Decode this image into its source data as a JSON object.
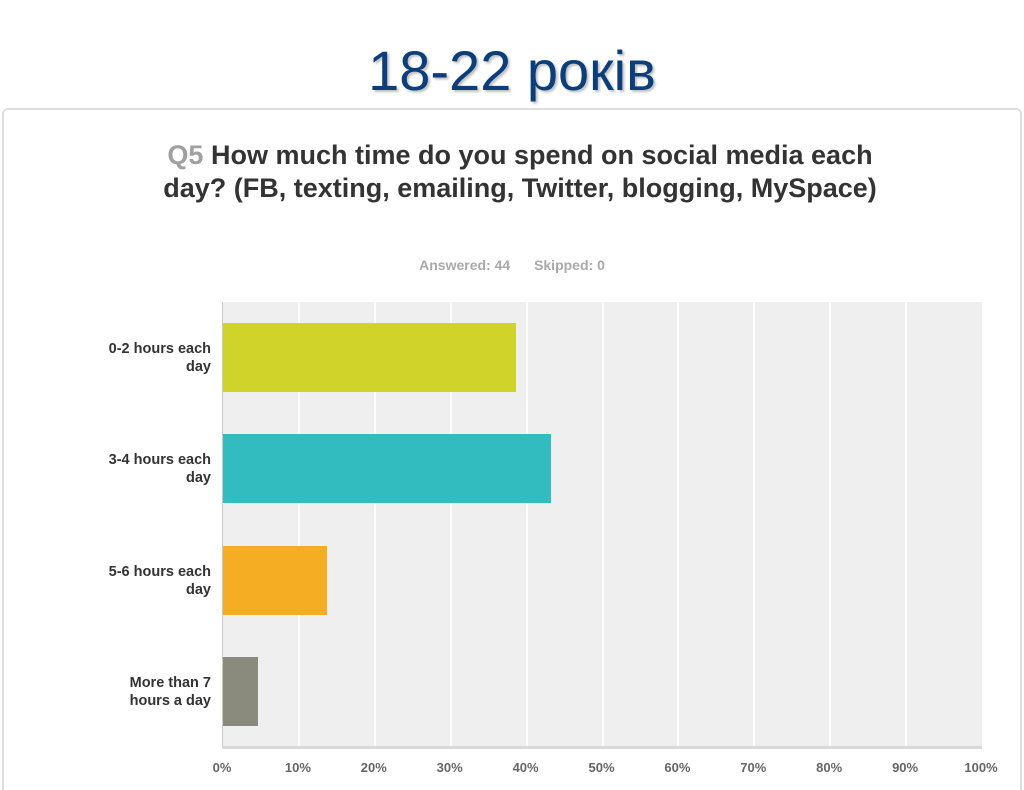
{
  "slide": {
    "title": "18-22 років"
  },
  "question": {
    "number": "Q5",
    "text": "How much time do you spend on social media each day? (FB, texting, emailing, Twitter, blogging, MySpace)",
    "answered_label": "Answered: 44",
    "skipped_label": "Skipped: 0"
  },
  "chart_data": {
    "type": "bar",
    "orientation": "horizontal",
    "title": "Q5 How much time do you spend on social media each day? (FB, texting, emailing, Twitter, blogging, MySpace)",
    "subtitle": "Answered: 44   Skipped: 0",
    "categories": [
      "0-2 hours each day",
      "3-4 hours each day",
      "5-6 hours each day",
      "More than 7 hours a day"
    ],
    "values": [
      38.64,
      43.18,
      13.64,
      4.55
    ],
    "value_unit": "%",
    "estimated_counts": [
      17,
      19,
      6,
      2
    ],
    "colors": [
      "#cfd32a",
      "#33bcbf",
      "#f5ae23",
      "#8a8b7c"
    ],
    "xlabel": "",
    "ylabel": "",
    "xlim": [
      0,
      100
    ],
    "x_ticks": [
      "0%",
      "10%",
      "20%",
      "30%",
      "40%",
      "50%",
      "60%",
      "70%",
      "80%",
      "90%",
      "100%"
    ],
    "grid": true,
    "legend": "none",
    "plot_background": "#efefef"
  },
  "category_labels": [
    [
      "0-2 hours each",
      "day"
    ],
    [
      "3-4 hours each",
      "day"
    ],
    [
      "5-6 hours each",
      "day"
    ],
    [
      "More than 7",
      "hours a day"
    ]
  ]
}
